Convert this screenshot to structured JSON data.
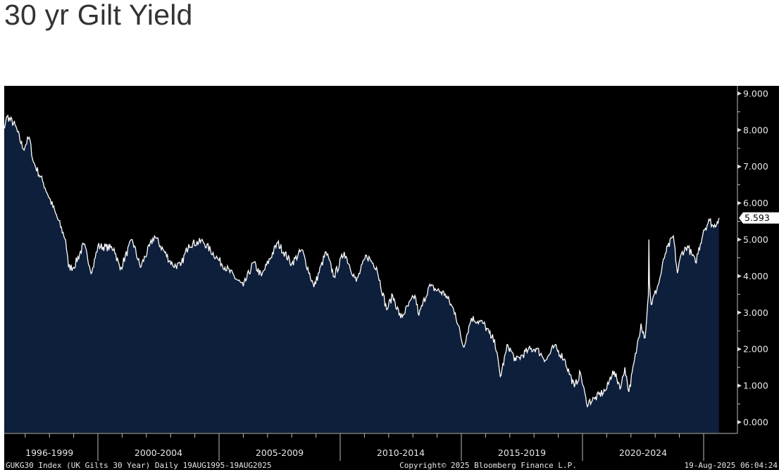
{
  "title": "30 yr Gilt Yield",
  "chart_data": {
    "type": "area",
    "title": "30 yr Gilt Yield",
    "xlabel": "",
    "ylabel": "",
    "ylim": [
      0,
      9
    ],
    "y_ticks": [
      "0.000",
      "1.000",
      "2.000",
      "3.000",
      "4.000",
      "5.000",
      "6.000",
      "7.000",
      "8.000",
      "9.000"
    ],
    "y_axis_side": "right",
    "grid": false,
    "x_period_labels": [
      "1996-1999",
      "2000-2004",
      "2005-2009",
      "2010-2014",
      "2015-2019",
      "2020-2024"
    ],
    "last_value_label": "5.593",
    "colors": {
      "background": "#000000",
      "area_fill": "#0e1f3b",
      "line": "#ffffff",
      "text": "#e6e6e6"
    },
    "series": [
      {
        "dates": [
          "1995-08-19",
          "1996-02-01",
          "1996-04-01",
          "1996-08-01",
          "1996-12-01",
          "1997-03-01",
          "1997-05-01",
          "1997-10-01",
          "1998-04-01",
          "1998-09-01",
          "1998-10-15",
          "1999-01-01",
          "1999-06-01",
          "1999-10-01",
          "2000-01-01",
          "2000-09-01",
          "2000-12-01",
          "2001-06-01",
          "2001-10-01",
          "2002-05-01",
          "2003-02-01",
          "2003-06-01",
          "2003-10-01",
          "2004-05-01",
          "2005-01-01",
          "2006-01-01",
          "2006-06-01",
          "2006-10-01",
          "2007-06-01",
          "2008-01-01",
          "2008-06-01",
          "2008-12-01",
          "2009-06-01",
          "2009-10-01",
          "2010-03-01",
          "2010-09-01",
          "2011-02-01",
          "2011-07-01",
          "2011-12-01",
          "2012-03-01",
          "2012-07-01",
          "2013-02-01",
          "2013-04-01",
          "2013-09-01",
          "2014-05-01",
          "2014-10-01",
          "2015-02-01",
          "2015-06-01",
          "2015-12-01",
          "2016-04-01",
          "2016-05-15",
          "2016-08-10",
          "2016-12-01",
          "2017-04-01",
          "2017-10-01",
          "2018-02-01",
          "2018-07-01",
          "2018-11-01",
          "2019-04-01",
          "2019-09-01",
          "2019-12-01",
          "2020-03-01",
          "2020-07-01",
          "2021-01-01",
          "2021-04-01",
          "2021-08-01",
          "2021-10-01",
          "2021-12-01",
          "2022-04-01",
          "2022-06-01",
          "2022-08-01",
          "2022-09-20",
          "2022-09-28",
          "2022-10-05",
          "2022-11-01",
          "2023-03-01",
          "2023-06-01",
          "2023-10-01",
          "2023-12-01",
          "2024-02-01",
          "2024-05-01",
          "2024-09-01",
          "2025-01-01",
          "2025-04-01",
          "2025-06-01",
          "2025-08-19"
        ],
        "values": [
          8.2,
          7.95,
          8.38,
          8.13,
          7.48,
          7.8,
          7.13,
          6.55,
          5.72,
          5.0,
          4.24,
          4.24,
          4.87,
          4.1,
          4.82,
          4.76,
          4.18,
          5.0,
          4.24,
          5.1,
          4.3,
          4.28,
          4.87,
          4.95,
          4.43,
          3.72,
          4.37,
          4.0,
          4.91,
          4.34,
          4.72,
          3.7,
          4.66,
          3.99,
          4.66,
          3.85,
          4.57,
          4.24,
          3.08,
          3.47,
          2.85,
          3.47,
          2.93,
          3.72,
          3.51,
          2.99,
          2.06,
          2.85,
          2.7,
          2.31,
          2.27,
          1.25,
          2.12,
          1.68,
          1.97,
          2.02,
          1.7,
          2.08,
          1.73,
          0.96,
          1.35,
          0.52,
          0.64,
          0.91,
          1.41,
          0.96,
          1.5,
          0.83,
          2.06,
          2.7,
          2.31,
          3.47,
          5.0,
          3.85,
          3.22,
          3.85,
          4.62,
          5.1,
          4.08,
          4.62,
          4.82,
          4.37,
          5.26,
          5.53,
          5.34,
          5.593
        ]
      }
    ]
  },
  "footer": {
    "left": "GUKG30 Index (UK Gilts 30 Year)  Daily 19AUG1995-19AUG2025",
    "center": "Copyright© 2025 Bloomberg Finance L.P.",
    "right": "19-Aug-2025 06:04:24"
  }
}
